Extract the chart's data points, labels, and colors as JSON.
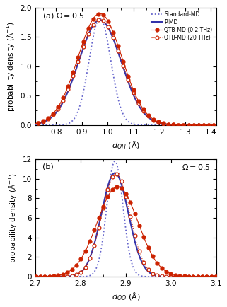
{
  "panel_a": {
    "xlim": [
      0.72,
      1.42
    ],
    "ylim": [
      0,
      2.0
    ],
    "yticks": [
      0,
      0.5,
      1.0,
      1.5,
      2.0
    ],
    "xticks": [
      0.8,
      0.9,
      1.0,
      1.1,
      1.2,
      1.3,
      1.4
    ],
    "std_md": {
      "mu": 0.97,
      "sigma": 0.042,
      "amplitude": 1.82
    },
    "pimd": {
      "mu": 0.97,
      "sigma": 0.082,
      "amplitude": 1.79
    },
    "qtb_02": {
      "mu": 0.97,
      "sigma": 0.085,
      "amplitude": 1.9
    },
    "qtb_20": {
      "mu": 0.97,
      "sigma": 0.084,
      "amplitude": 1.8
    },
    "n_markers_a": 36,
    "marker_start": 0.73,
    "marker_end": 1.41
  },
  "panel_b": {
    "xlim": [
      2.7,
      3.1
    ],
    "ylim": [
      0,
      12
    ],
    "yticks": [
      0,
      2,
      4,
      6,
      8,
      10,
      12
    ],
    "xticks": [
      2.7,
      2.8,
      2.9,
      3.0,
      3.1
    ],
    "std_md": {
      "mu": 2.876,
      "sigma": 0.018,
      "amplitude": 11.8
    },
    "pimd": {
      "mu": 2.876,
      "sigma": 0.03,
      "amplitude": 10.6
    },
    "qtb_02": {
      "mu": 2.882,
      "sigma": 0.045,
      "amplitude": 9.2
    },
    "qtb_20": {
      "mu": 2.878,
      "sigma": 0.031,
      "amplitude": 10.5
    },
    "n_markers_b": 41,
    "marker_start": 2.701,
    "marker_end": 3.099
  },
  "colors": {
    "std_md": "#6666cc",
    "pimd": "#3333aa",
    "qtb": "#cc2200"
  },
  "legend": {
    "standard_md": "Standard-MD",
    "pimd": "PIMD",
    "qtb_02": "QTB-MD (0.2 THz)",
    "qtb_20": "QTB-MD (20 THz)"
  }
}
